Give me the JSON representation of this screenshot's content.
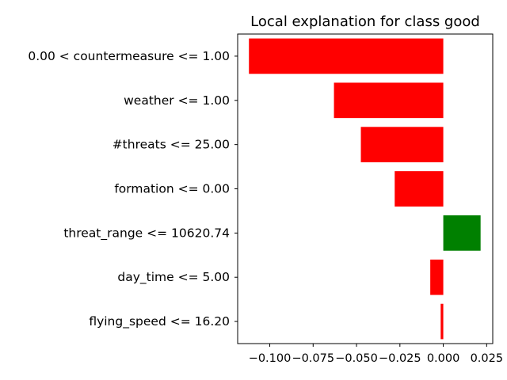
{
  "chart_data": {
    "type": "bar",
    "orientation": "horizontal",
    "title": "Local explanation for class good",
    "xlabel": "",
    "ylabel": "",
    "categories": [
      "0.00 < countermeasure <= 1.00",
      "weather <= 1.00",
      "#threats <= 25.00",
      "formation <= 0.00",
      "threat_range <= 10620.74",
      "day_time <= 5.00",
      "flying_speed <= 16.20"
    ],
    "values": [
      -0.112,
      -0.063,
      -0.0475,
      -0.028,
      0.0215,
      -0.0075,
      -0.0015
    ],
    "xlim": [
      -0.1185,
      0.0285
    ],
    "xticks": [
      -0.1,
      -0.075,
      -0.05,
      -0.025,
      0.0,
      0.025
    ],
    "xtick_labels": [
      "−0.100",
      "−0.075",
      "−0.050",
      "−0.025",
      "0.000",
      "0.025"
    ],
    "colors": {
      "positive": "#008000",
      "negative": "#ff0000"
    },
    "grid": false
  }
}
